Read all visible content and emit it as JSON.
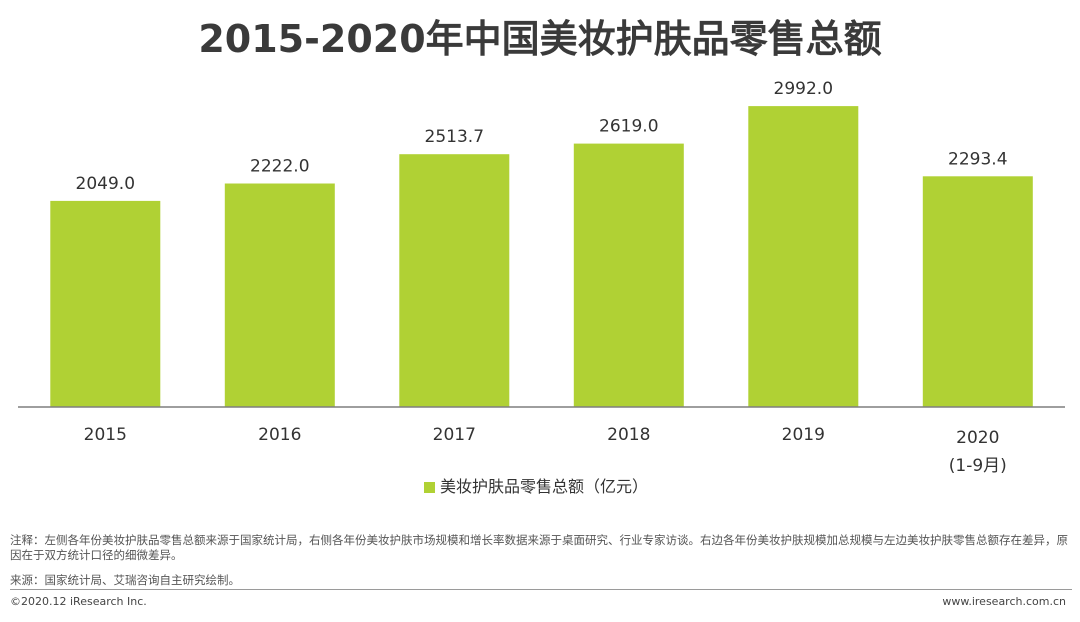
{
  "chart_data": {
    "type": "bar",
    "title": "2015-2020年中国美妆护肤品零售总额",
    "categories": [
      "2015",
      "2016",
      "2017",
      "2018",
      "2019",
      "2020"
    ],
    "category_sublabels": [
      "",
      "",
      "",
      "",
      "",
      "(1-9月)"
    ],
    "series": [
      {
        "name": "美妆护肤品零售总额（亿元）",
        "values": [
          2049.0,
          2222.0,
          2513.7,
          2619.0,
          2992.0,
          2293.4
        ],
        "color": "#b0d134"
      }
    ],
    "ylim": [
      0,
      3450
    ],
    "grid": false,
    "legend_position": "bottom-center",
    "data_labels": true,
    "data_label_format": "one-decimal"
  },
  "footer": {
    "note": "注释：左侧各年份美妆护肤品零售总额来源于国家统计局，右侧各年份美妆护肤市场规模和增长率数据来源于桌面研究、行业专家访谈。右边各年份美妆护肤规模加总规模与左边美妆护肤零售总额存在差异，原因在于双方统计口径的细微差异。",
    "source": "来源：国家统计局、艾瑞咨询自主研究绘制。",
    "copyright": "©2020.12 iResearch Inc.",
    "website": "www.iresearch.com.cn"
  },
  "colors": {
    "bar": "#b0d134",
    "axis": "#7f7f7f",
    "title": "#3a3a3a"
  }
}
